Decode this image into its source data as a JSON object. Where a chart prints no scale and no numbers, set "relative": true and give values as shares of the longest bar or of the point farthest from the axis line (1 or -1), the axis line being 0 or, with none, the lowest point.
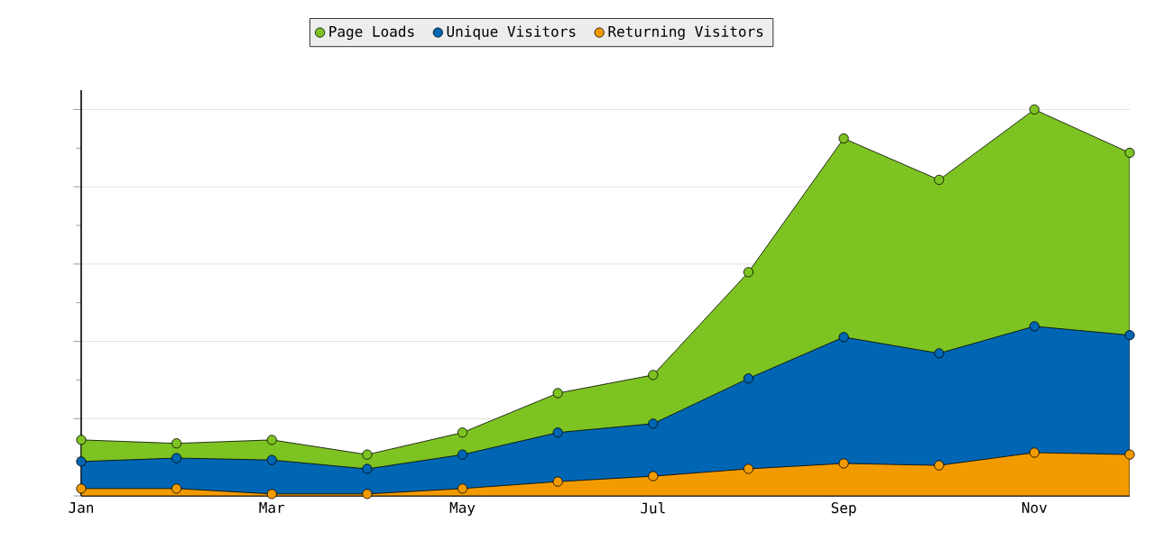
{
  "chart_data": {
    "type": "area",
    "relative": true,
    "categories": [
      "Jan",
      null,
      "Mar",
      null,
      "May",
      null,
      "Jul",
      null,
      "Sep",
      null,
      "Nov",
      null
    ],
    "series": [
      {
        "name": "Page Loads",
        "color": "#7dc322",
        "values": [
          0.145,
          0.136,
          0.145,
          0.107,
          0.164,
          0.266,
          0.313,
          0.579,
          0.925,
          0.818,
          1,
          0.888
        ]
      },
      {
        "name": "Unique Visitors",
        "color": "#0066b3",
        "values": [
          0.089,
          0.098,
          0.093,
          0.07,
          0.107,
          0.164,
          0.187,
          0.304,
          0.411,
          0.369,
          0.439,
          0.416
        ]
      },
      {
        "name": "Returning Visitors",
        "color": "#f29b00",
        "values": [
          0.019,
          0.019,
          0.005,
          0.005,
          0.019,
          0.037,
          0.051,
          0.07,
          0.084,
          0.079,
          0.112,
          0.107
        ]
      }
    ],
    "grid": "y",
    "legend": "top",
    "marker": "circle"
  }
}
